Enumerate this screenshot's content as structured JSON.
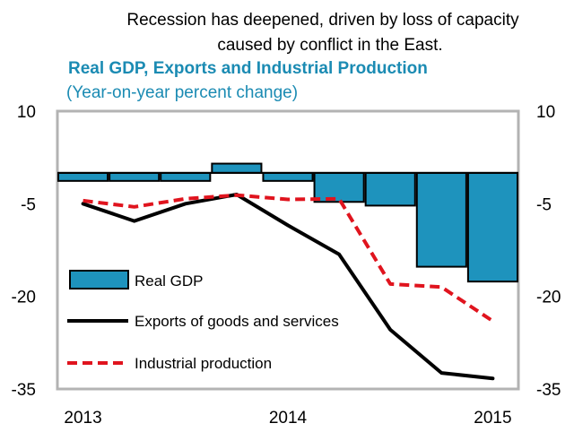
{
  "header": {
    "caption_line1": "Recession  has deepened, driven by loss of capacity",
    "caption_line2": "caused by conflict in the East.",
    "title": "Real GDP, Exports and Industrial Production",
    "subtitle": "(Year-on-year percent change)"
  },
  "colors": {
    "title": "#1b8bb3",
    "bar": "#1e93bd",
    "exports_line": "#000000",
    "industrial_line": "#e0141e",
    "frame": "#b3b3b3"
  },
  "chart_data": {
    "type": "bar",
    "title": "Real GDP, Exports and Industrial Production",
    "subtitle": "(Year-on-year percent change)",
    "ylim": [
      -35,
      10
    ],
    "yticks": [
      10,
      -5,
      -20,
      -35
    ],
    "ytick_labels": [
      "10",
      "-5",
      "-20",
      "-35"
    ],
    "xtick_labels": [
      "2013",
      "2014",
      "2015"
    ],
    "categories": [
      "2013Q1",
      "2013Q2",
      "2013Q3",
      "2013Q4",
      "2014Q1",
      "2014Q2",
      "2014Q3",
      "2014Q4",
      "2015Q1"
    ],
    "grid": false,
    "legend_position": "bottom-left",
    "series": [
      {
        "name": "Real GDP",
        "type": "bar",
        "values": [
          -1.3,
          -1.3,
          -1.3,
          1.5,
          -1.3,
          -4.7,
          -5.3,
          -15.2,
          -17.6
        ]
      },
      {
        "name": "Exports of goods and services",
        "type": "line",
        "values": [
          -5.0,
          -7.8,
          -5.0,
          -3.5,
          -8.5,
          -13.2,
          -25.4,
          -32.4,
          -33.3
        ]
      },
      {
        "name": "Industrial production",
        "type": "line",
        "values": [
          -4.5,
          -5.5,
          -4.2,
          -3.6,
          -4.3,
          -4.2,
          -18.0,
          -18.5,
          -24.0
        ]
      }
    ]
  }
}
